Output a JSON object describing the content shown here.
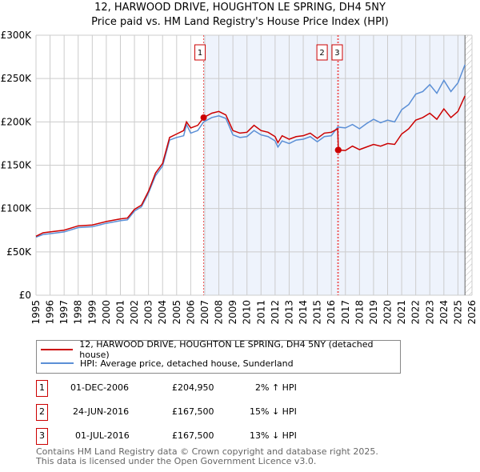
{
  "header": {
    "title": "12, HARWOOD DRIVE, HOUGHTON LE SPRING, DH4 5NY",
    "subtitle": "Price paid vs. HM Land Registry's House Price Index (HPI)"
  },
  "chart_data": {
    "type": "line",
    "xlim": [
      1995,
      2026
    ],
    "ylim": [
      0,
      300000
    ],
    "yticks": [
      {
        "v": 0,
        "label": "£0"
      },
      {
        "v": 50000,
        "label": "£50K"
      },
      {
        "v": 100000,
        "label": "£100K"
      },
      {
        "v": 150000,
        "label": "£150K"
      },
      {
        "v": 200000,
        "label": "£200K"
      },
      {
        "v": 250000,
        "label": "£250K"
      },
      {
        "v": 300000,
        "label": "£300K"
      }
    ],
    "xticks": [
      "1995",
      "1996",
      "1997",
      "1998",
      "1999",
      "2000",
      "2001",
      "2002",
      "2003",
      "2004",
      "2005",
      "2006",
      "2007",
      "2008",
      "2009",
      "2010",
      "2011",
      "2012",
      "2013",
      "2014",
      "2015",
      "2016",
      "2017",
      "2018",
      "2019",
      "2020",
      "2021",
      "2022",
      "2023",
      "2024",
      "2025",
      "2026"
    ],
    "shaded_from": 2006.92,
    "hatched_from": 2025.5,
    "series": [
      {
        "name": "12, HARWOOD DRIVE, HOUGHTON LE SPRING, DH4 5NY (detached house)",
        "color": "#cc0000",
        "x": [
          1995,
          1995.5,
          1996,
          1997,
          1998,
          1999,
          2000,
          2001,
          2001.5,
          2002,
          2002.5,
          2003,
          2003.5,
          2004,
          2004.5,
          2005,
          2005.5,
          2005.7,
          2006,
          2006.5,
          2006.92,
          2007.5,
          2008,
          2008.5,
          2009,
          2009.5,
          2010,
          2010.5,
          2011,
          2011.5,
          2012,
          2012.2,
          2012.5,
          2013,
          2013.5,
          2014,
          2014.5,
          2015,
          2015.5,
          2016,
          2016.45,
          2016.5,
          2017,
          2017.5,
          2018,
          2018.5,
          2019,
          2019.5,
          2020,
          2020.5,
          2021,
          2021.5,
          2022,
          2022.5,
          2023,
          2023.5,
          2024,
          2024.5,
          2025,
          2025.5
        ],
        "y": [
          68000,
          72000,
          73000,
          75000,
          80000,
          81000,
          85000,
          88000,
          89000,
          99000,
          104000,
          120000,
          141000,
          152000,
          182000,
          186000,
          190000,
          200000,
          193000,
          196000,
          204950,
          210000,
          212000,
          208000,
          190000,
          187000,
          188000,
          196000,
          190000,
          188000,
          183000,
          176000,
          184000,
          180000,
          183000,
          184000,
          187000,
          181000,
          187000,
          188000,
          192000,
          167500,
          167000,
          172000,
          168000,
          171000,
          174000,
          172000,
          175000,
          174000,
          186000,
          192000,
          202000,
          205000,
          210000,
          203000,
          215000,
          205000,
          212000,
          230000
        ]
      },
      {
        "name": "HPI: Average price, detached house, Sunderland",
        "color": "#5b8fd6",
        "x": [
          1995,
          1995.5,
          1996,
          1997,
          1998,
          1999,
          2000,
          2001,
          2001.5,
          2002,
          2002.5,
          2003,
          2003.5,
          2004,
          2004.5,
          2005,
          2005.5,
          2005.7,
          2006,
          2006.5,
          2006.92,
          2007.5,
          2008,
          2008.5,
          2009,
          2009.5,
          2010,
          2010.5,
          2011,
          2011.5,
          2012,
          2012.2,
          2012.5,
          2013,
          2013.5,
          2014,
          2014.5,
          2015,
          2015.5,
          2016,
          2016.45,
          2017,
          2017.5,
          2018,
          2018.5,
          2019,
          2019.5,
          2020,
          2020.5,
          2021,
          2021.5,
          2022,
          2022.5,
          2023,
          2023.5,
          2024,
          2024.5,
          2025,
          2025.5
        ],
        "y": [
          67000,
          70000,
          71000,
          73000,
          78000,
          79000,
          83000,
          86000,
          87000,
          97000,
          102000,
          118000,
          138000,
          149000,
          179000,
          182000,
          184000,
          197000,
          187000,
          190000,
          200000,
          205000,
          207000,
          204000,
          185000,
          182000,
          183000,
          190000,
          185000,
          183000,
          178000,
          171000,
          178000,
          175000,
          179000,
          180000,
          183000,
          177000,
          183000,
          184000,
          194000,
          193000,
          197000,
          192000,
          198000,
          203000,
          199000,
          202000,
          200000,
          214000,
          220000,
          232000,
          235000,
          243000,
          233000,
          248000,
          235000,
          245000,
          266000
        ]
      }
    ],
    "sales": [
      {
        "x": 2006.92,
        "y": 204950
      },
      {
        "x": 2016.48,
        "y": 167500
      },
      {
        "x": 2016.5,
        "y": 167500
      }
    ],
    "markers": [
      {
        "label": "1",
        "x": 2006.92
      },
      {
        "label": "2",
        "x": 2016.45
      },
      {
        "label": "3",
        "x": 2016.5
      }
    ]
  },
  "legend": {
    "red": "12, HARWOOD DRIVE, HOUGHTON LE SPRING, DH4 5NY (detached house)",
    "blue": "HPI: Average price, detached house, Sunderland"
  },
  "transactions": [
    {
      "num": "1",
      "date": "01-DEC-2006",
      "price": "£204,950",
      "hpi": "2% ↑ HPI"
    },
    {
      "num": "2",
      "date": "24-JUN-2016",
      "price": "£167,500",
      "hpi": "15% ↓ HPI"
    },
    {
      "num": "3",
      "date": "01-JUL-2016",
      "price": "£167,500",
      "hpi": "13% ↓ HPI"
    }
  ],
  "footer": {
    "line1": "Contains HM Land Registry data © Crown copyright and database right 2025.",
    "line2": "This data is licensed under the Open Government Licence v3.0."
  }
}
